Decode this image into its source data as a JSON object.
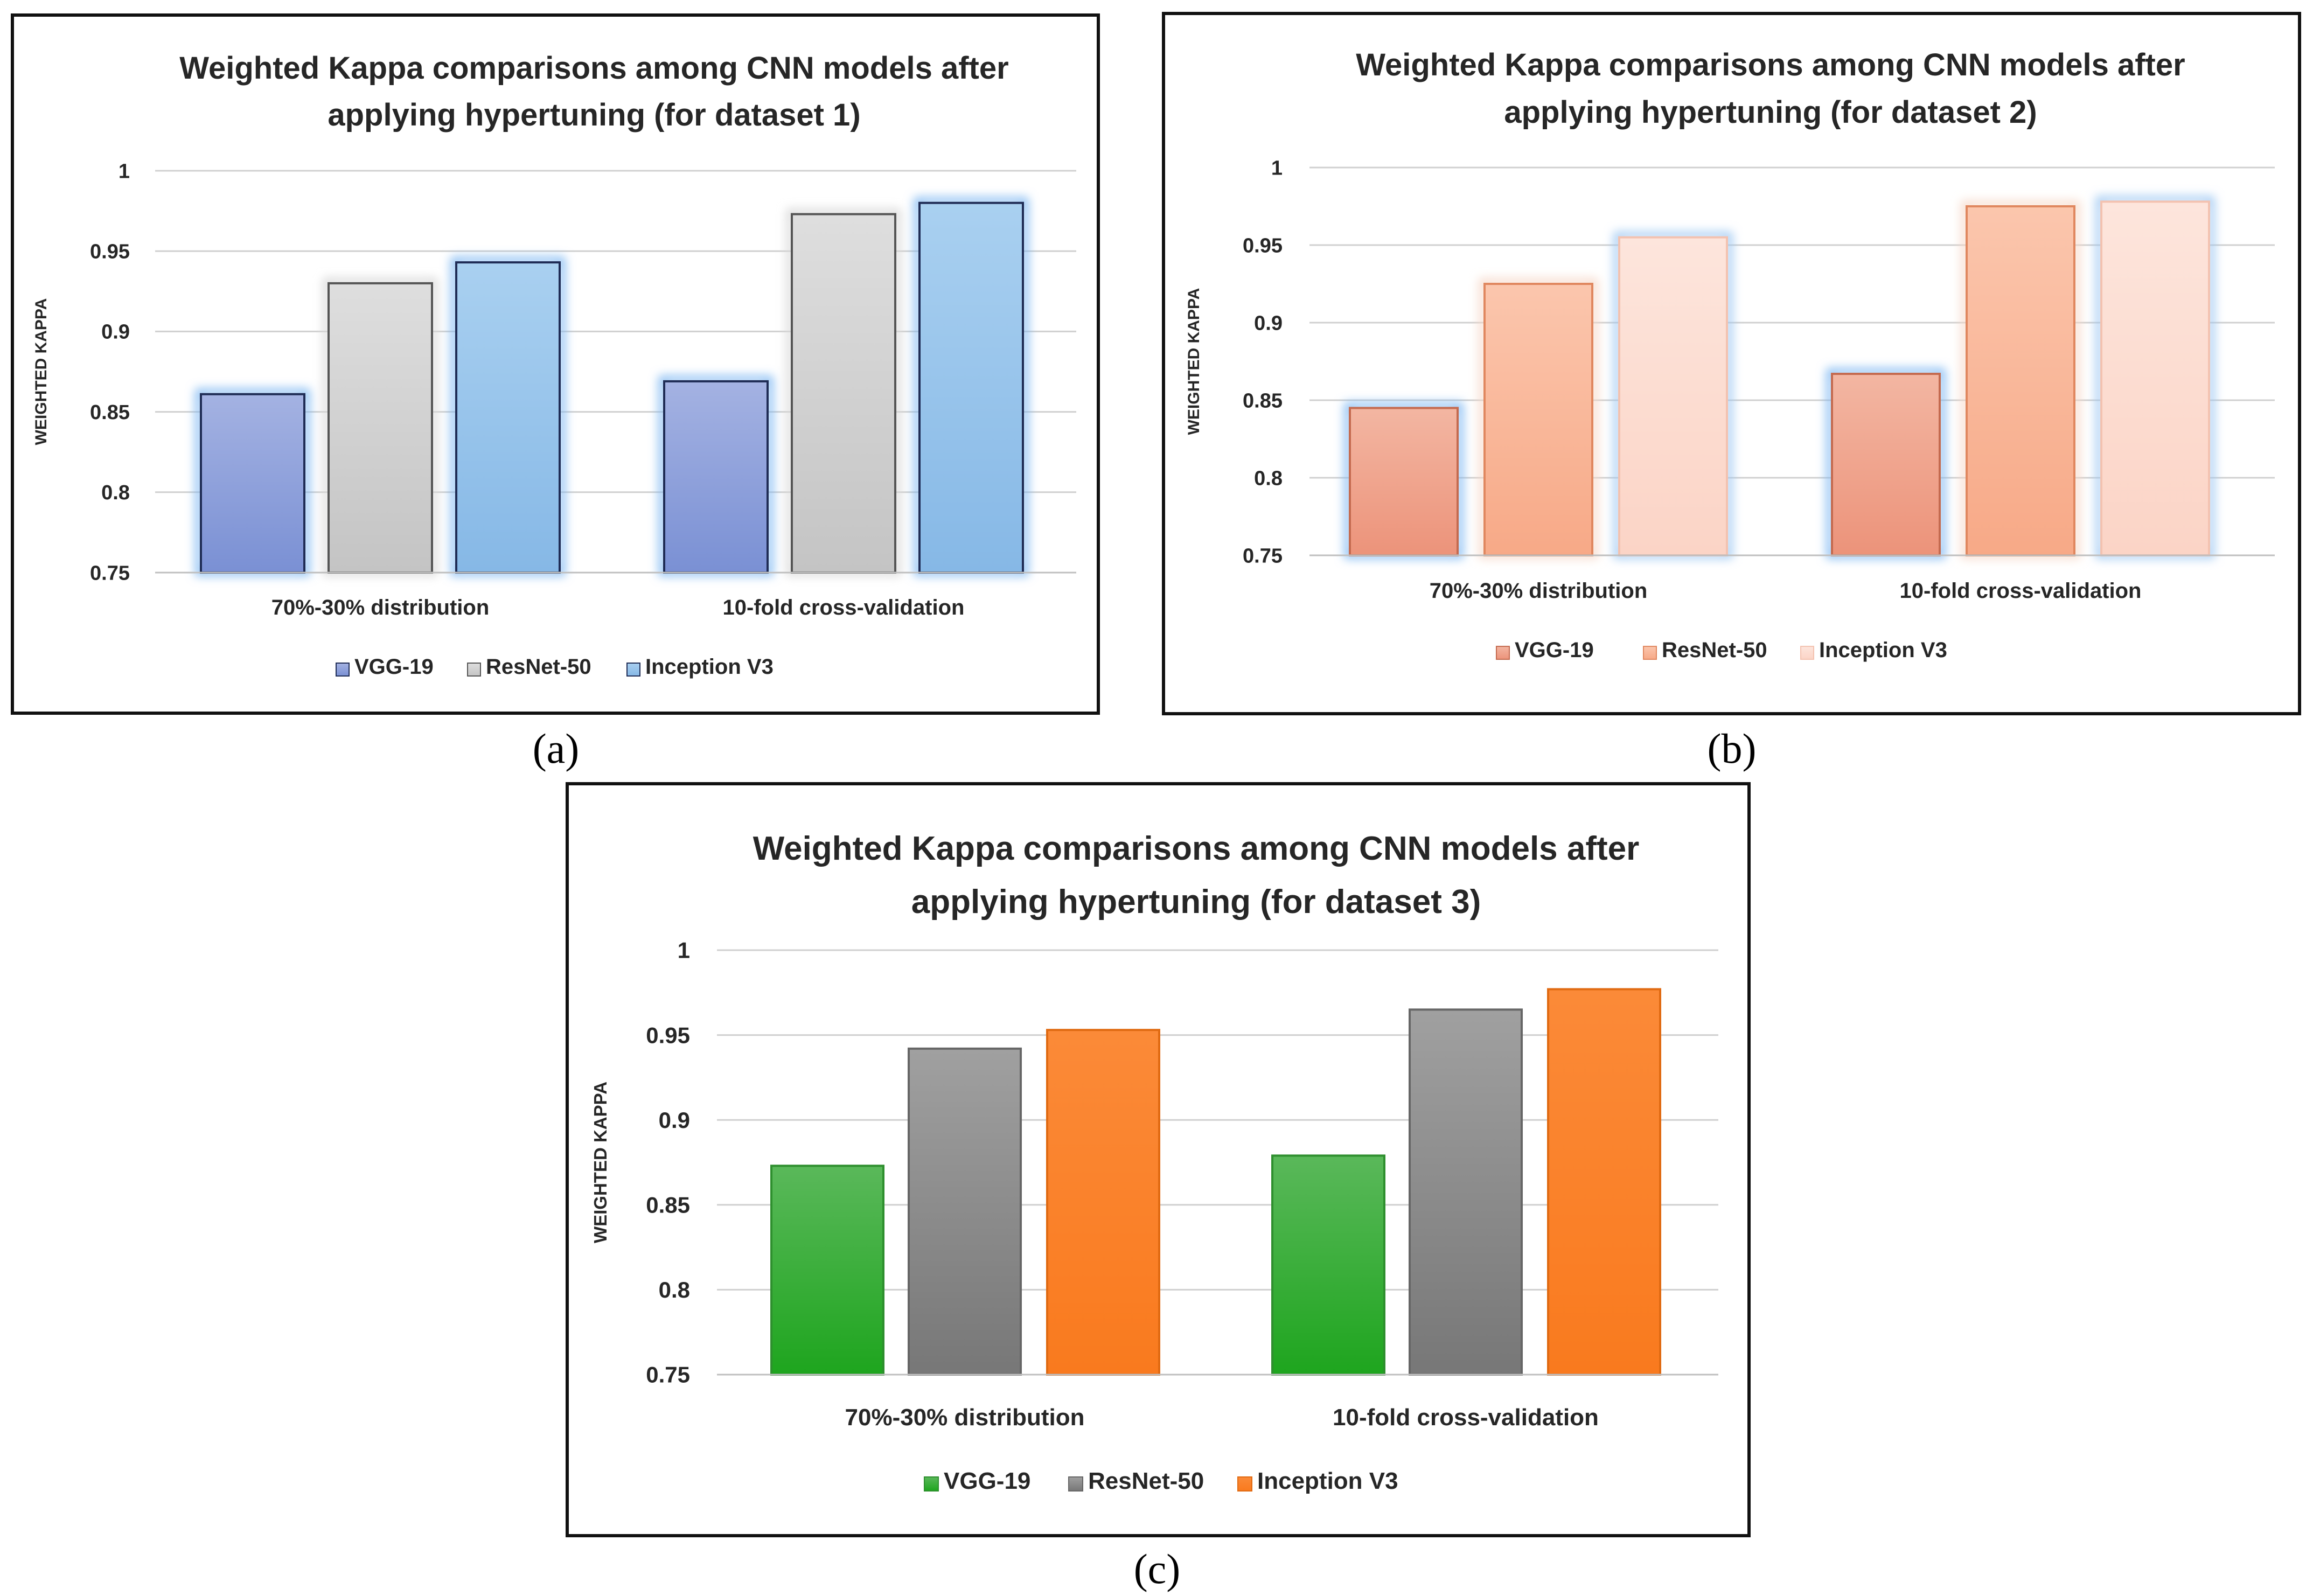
{
  "chart_data": [
    {
      "type": "bar",
      "title_lines": [
        "Weighted Kappa comparisons among CNN models after",
        "applying hypertuning (for dataset 1)"
      ],
      "ylabel": "WEIGHTED KAPPA",
      "ylim": [
        0.75,
        1
      ],
      "yticks": [
        "0.75",
        "0.8",
        "0.85",
        "0.9",
        "0.95",
        "1"
      ],
      "categories": [
        "70%-30% distribution",
        "10-fold cross-validation"
      ],
      "series": [
        {
          "name": "VGG-19",
          "values": [
            0.861,
            0.869
          ],
          "color": "#8fa2dc",
          "color_top": "#a4b2e2",
          "color_bottom": "#7a90d4",
          "stroke": "#1f2c55",
          "glow": "#7fb8f2"
        },
        {
          "name": "ResNet-50",
          "values": [
            0.93,
            0.973
          ],
          "color": "#cfcfcf",
          "color_top": "#dedede",
          "color_bottom": "#c4c4c4",
          "stroke": "#555555",
          "glow": "#d8d8d8"
        },
        {
          "name": "Inception V3",
          "values": [
            0.943,
            0.98
          ],
          "color": "#94c3ec",
          "color_top": "#a9d0f0",
          "color_bottom": "#86b8e6",
          "stroke": "#1f2c55",
          "glow": "#7fb8f2"
        }
      ],
      "legend_position": "bottom",
      "grid": true
    },
    {
      "type": "bar",
      "title_lines": [
        "Weighted Kappa comparisons among CNN models after",
        "applying hypertuning (for dataset 2)"
      ],
      "ylabel": "WEIGHTED KAPPA",
      "ylim": [
        0.75,
        1
      ],
      "yticks": [
        "0.75",
        "0.8",
        "0.85",
        "0.9",
        "0.95",
        "1"
      ],
      "categories": [
        "70%-30% distribution",
        "10-fold cross-validation"
      ],
      "series": [
        {
          "name": "VGG-19",
          "values": [
            0.845,
            0.867
          ],
          "color": "#f0a58e",
          "color_top": "#f3b6a2",
          "color_bottom": "#ec937a",
          "stroke": "#c46a4f",
          "glow": "#7fb8f2"
        },
        {
          "name": "ResNet-50",
          "values": [
            0.925,
            0.975
          ],
          "color": "#f9b798",
          "color_top": "#fbc6ad",
          "color_bottom": "#f7a987",
          "stroke": "#e0875f",
          "glow": "#f6d8c8"
        },
        {
          "name": "Inception V3",
          "values": [
            0.955,
            0.978
          ],
          "color": "#fcdcd0",
          "color_top": "#fde5dc",
          "color_bottom": "#fbd4c6",
          "stroke": "#f3c2b0",
          "glow": "#9fc8f2"
        }
      ],
      "legend_position": "bottom",
      "grid": true
    },
    {
      "type": "bar",
      "title_lines": [
        "Weighted Kappa comparisons among CNN models after",
        "applying hypertuning (for dataset 3)"
      ],
      "ylabel": "WEIGHTED KAPPA",
      "ylim": [
        0.75,
        1
      ],
      "yticks": [
        "0.75",
        "0.8",
        "0.85",
        "0.9",
        "0.95",
        "1"
      ],
      "categories": [
        "70%-30% distribution",
        "10-fold cross-validation"
      ],
      "series": [
        {
          "name": "VGG-19",
          "values": [
            0.873,
            0.879
          ],
          "color": "#3fb03f",
          "color_top": "#5ab85a",
          "color_bottom": "#1ea51e",
          "stroke": "#2e8f2e",
          "glow": ""
        },
        {
          "name": "ResNet-50",
          "values": [
            0.942,
            0.965
          ],
          "color": "#8c8c8c",
          "color_top": "#a0a0a0",
          "color_bottom": "#777777",
          "stroke": "#666666",
          "glow": ""
        },
        {
          "name": "Inception V3",
          "values": [
            0.953,
            0.977
          ],
          "color": "#fb7f26",
          "color_top": "#fb8a38",
          "color_bottom": "#f97a1e",
          "stroke": "#e06a12",
          "glow": ""
        }
      ],
      "legend_position": "bottom",
      "grid": true
    }
  ],
  "captions": [
    "(a)",
    "(b)",
    "(c)"
  ]
}
